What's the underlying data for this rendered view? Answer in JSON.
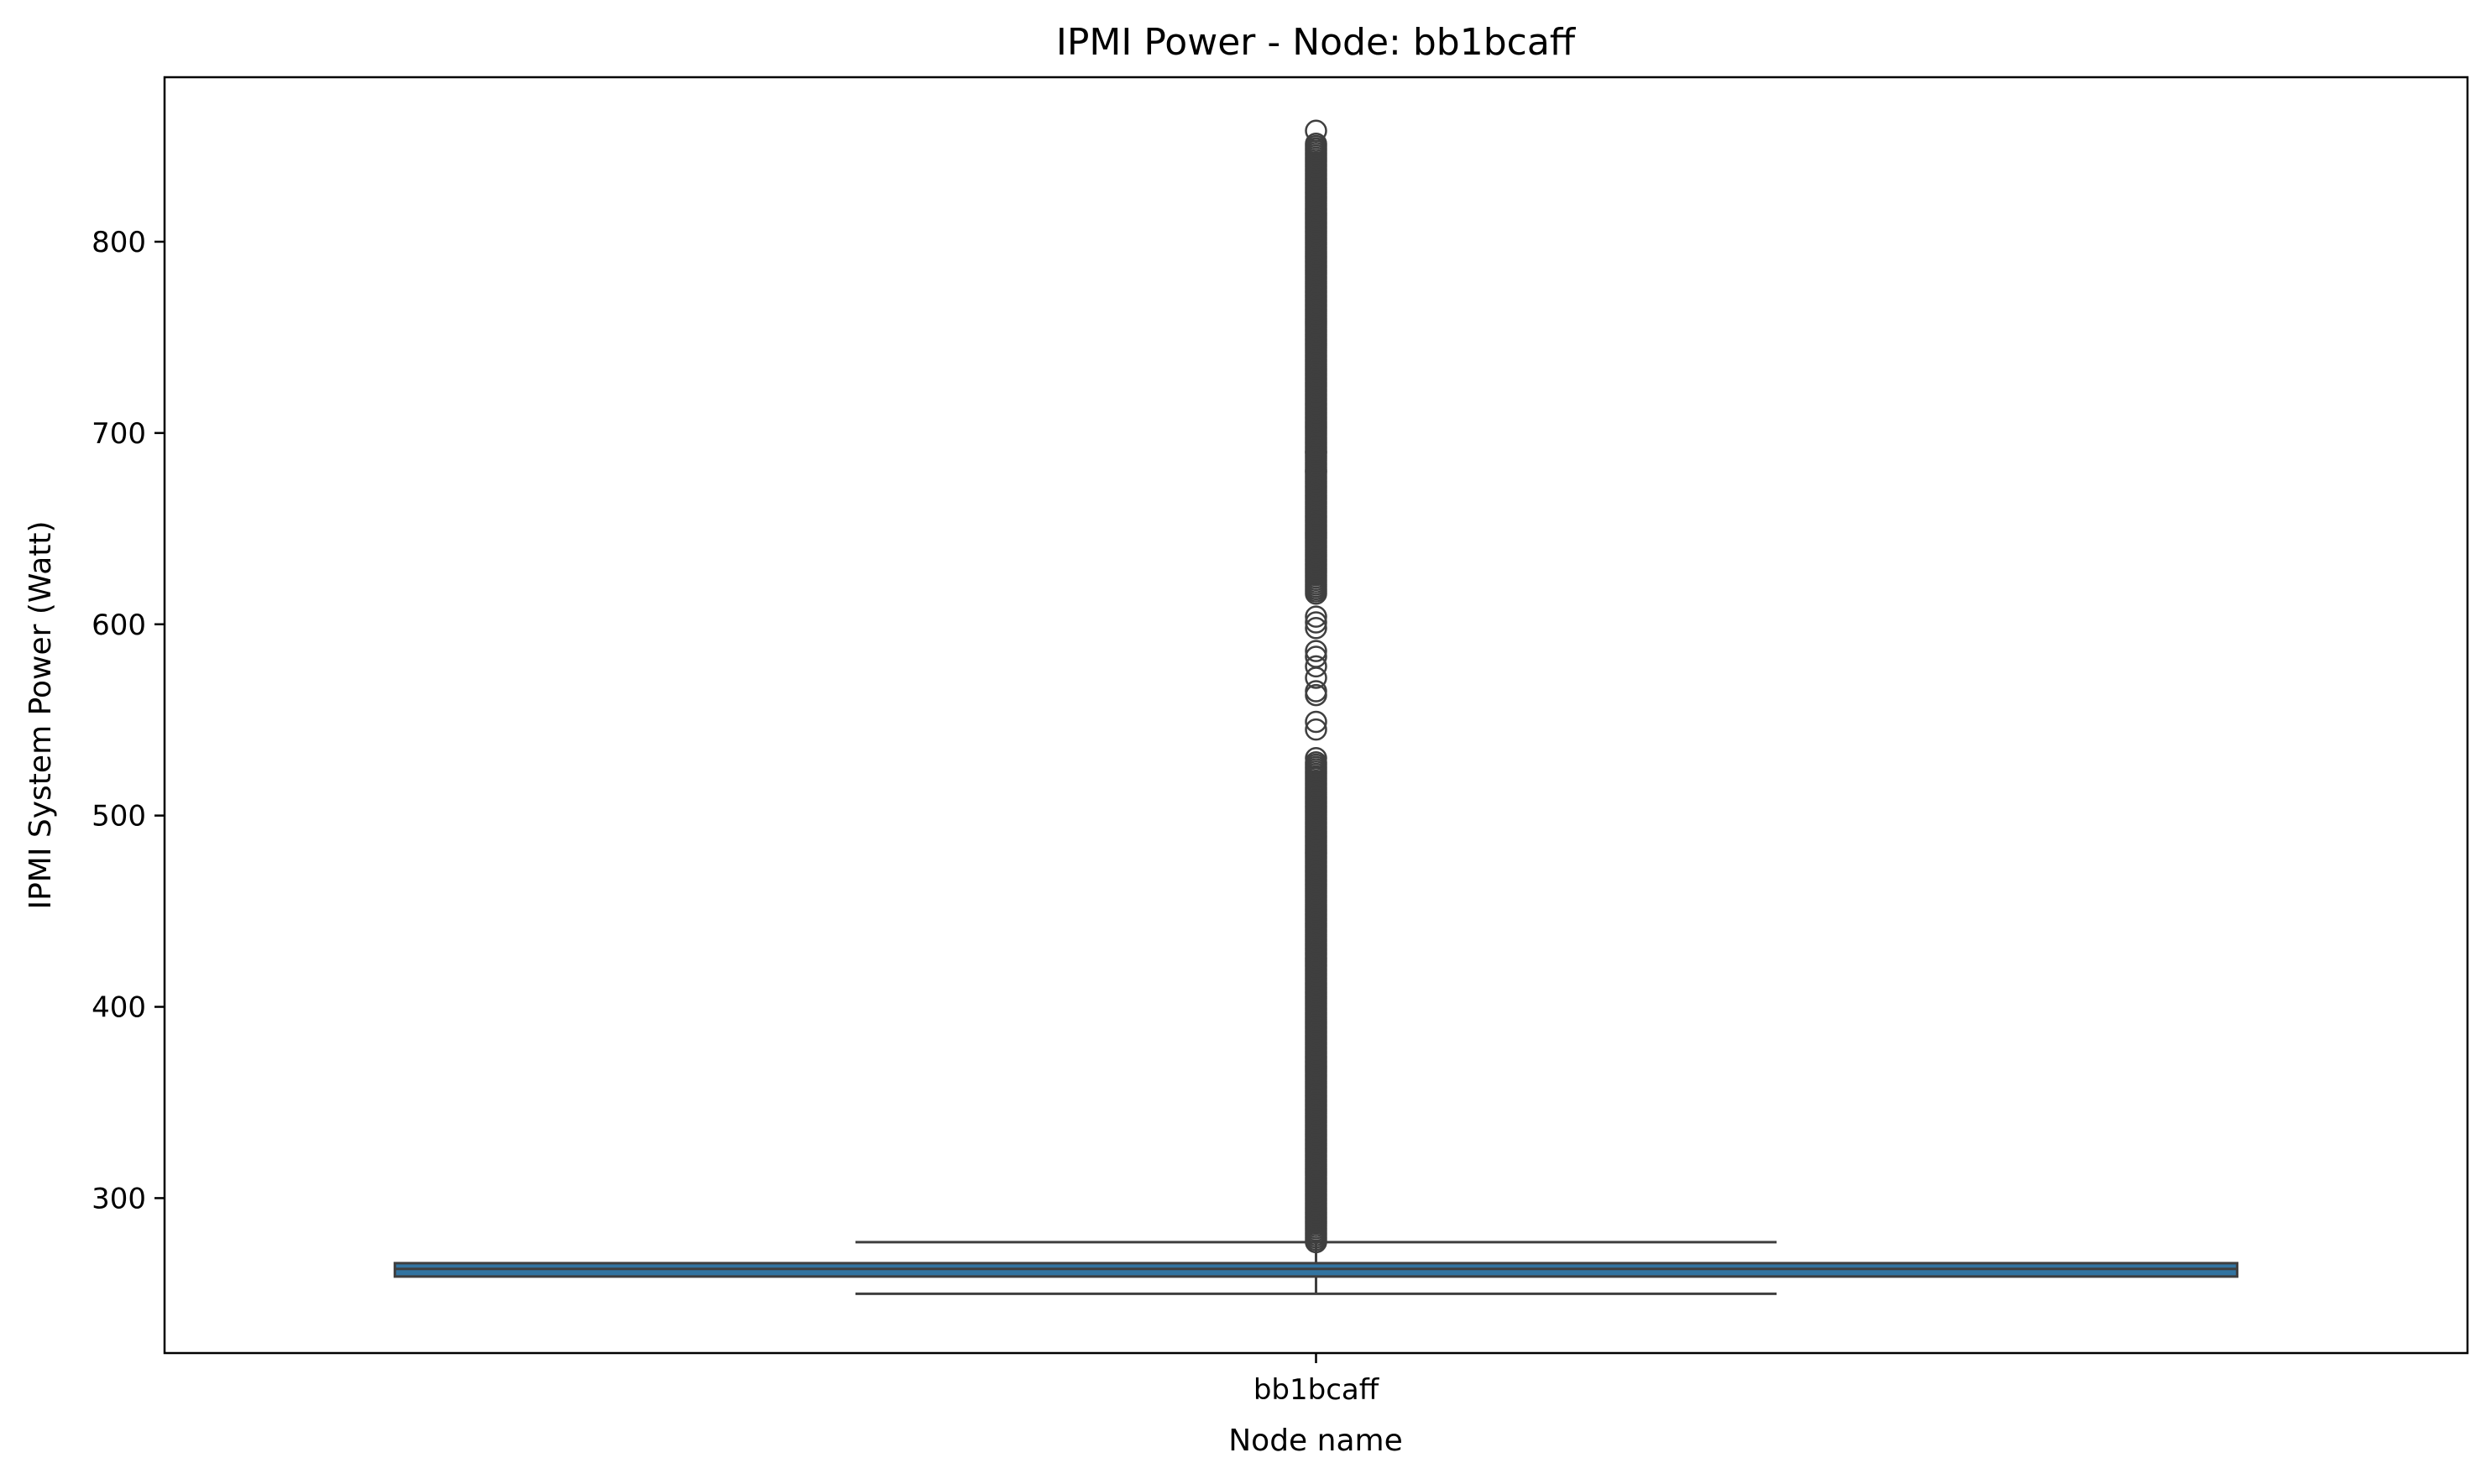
{
  "chart_data": {
    "type": "box",
    "title": "IPMI Power - Node: bb1bcaff",
    "xlabel": "Node name",
    "ylabel": "IPMI System Power (Watt)",
    "categories": [
      "bb1bcaff"
    ],
    "ylim": [
      219,
      886
    ],
    "yticks": [
      300,
      400,
      500,
      600,
      700,
      800
    ],
    "grid": false,
    "legend": "none",
    "box": {
      "q1": 259,
      "median": 263,
      "q3": 266,
      "whisker_low": 250,
      "whisker_high": 277,
      "fill_color": "#3274a1",
      "line_color": "#3f3f3f"
    },
    "outliers": {
      "ranges": [
        [
          277,
          528
        ],
        [
          616,
          852
        ]
      ],
      "range_step": 1.2,
      "scattered": [
        530,
        545,
        549,
        563,
        565,
        572,
        578,
        583,
        586,
        598,
        601,
        604,
        680,
        690,
        858
      ],
      "marker_color": "#3f3f3f"
    }
  }
}
